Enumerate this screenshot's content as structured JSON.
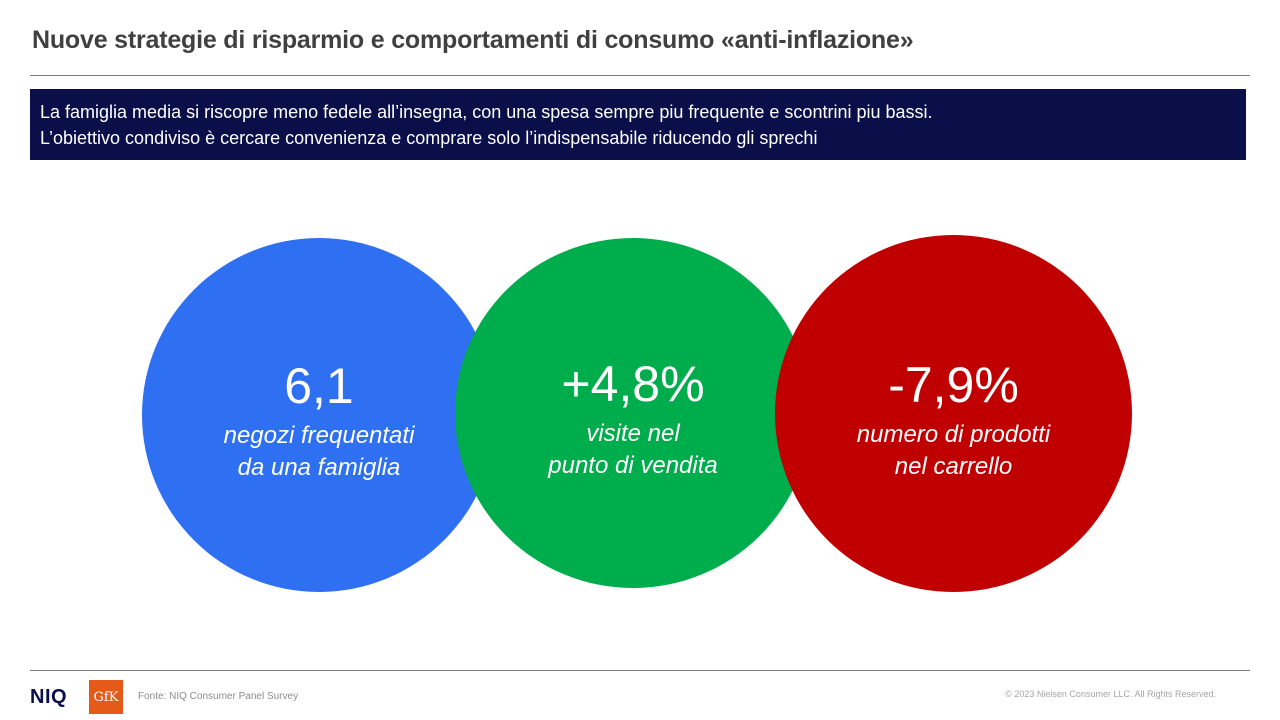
{
  "title": "Nuove strategie di risparmio e comportamenti di consumo «anti-inflazione»",
  "banner": {
    "line1": "La famiglia media si riscopre meno fedele all’insegna, con una spesa sempre piu frequente e scontrini piu bassi.",
    "line2": "L’obiettivo condiviso è cercare convenienza e comprare solo l’indispensabile riducendo gli sprechi"
  },
  "kpis": [
    {
      "value": "6,1",
      "line1": "negozi frequentati",
      "line2": "da una famiglia",
      "color": "#2f6ff2"
    },
    {
      "value": "+4,8%",
      "line1": "visite nel",
      "line2": "punto di vendita",
      "color": "#00ad4d"
    },
    {
      "value": "-7,9%",
      "line1": "numero di prodotti",
      "line2": "nel carrello",
      "color": "#c00000"
    }
  ],
  "footer": {
    "niq_logo": "NIQ",
    "gfk_logo": "GfK",
    "source": "Fonte: NIQ Consumer Panel Survey",
    "copyright": "© 2023 Nielsen Consumer LLC. All Rights Reserved."
  },
  "colors": {
    "banner_bg": "#0a0f4a",
    "gfk_orange": "#e55a19"
  }
}
